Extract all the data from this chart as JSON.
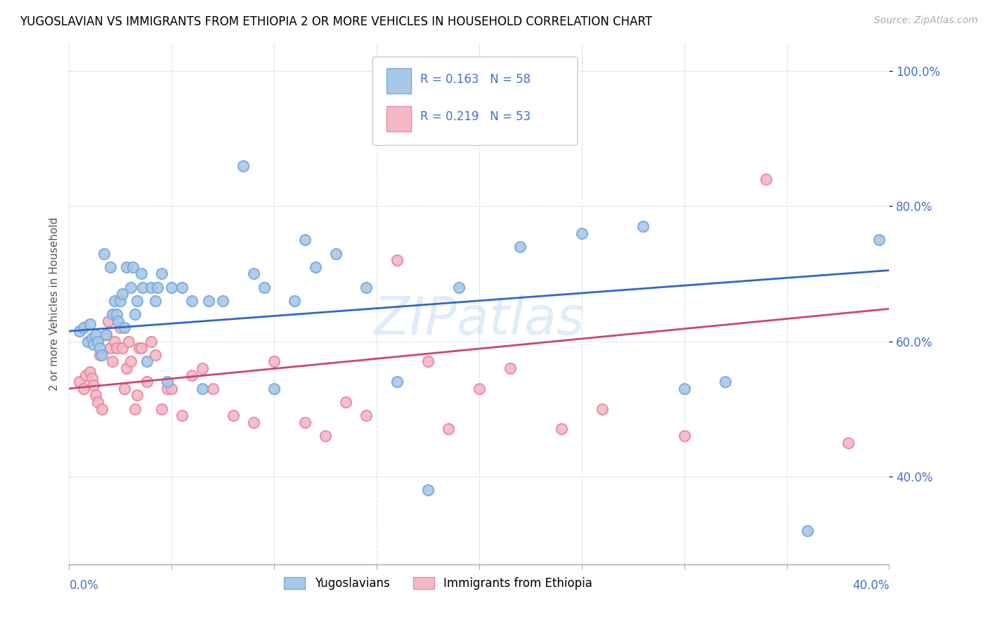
{
  "title": "YUGOSLAVIAN VS IMMIGRANTS FROM ETHIOPIA 2 OR MORE VEHICLES IN HOUSEHOLD CORRELATION CHART",
  "source": "Source: ZipAtlas.com",
  "ylabel": "2 or more Vehicles in Household",
  "xlim": [
    0.0,
    0.4
  ],
  "ylim": [
    0.27,
    1.04
  ],
  "yticks": [
    0.4,
    0.6,
    0.8,
    1.0
  ],
  "ytick_labels": [
    "40.0%",
    "60.0%",
    "80.0%",
    "100.0%"
  ],
  "blue_color": "#a8c8e8",
  "blue_edge_color": "#7aabda",
  "pink_color": "#f4b8c8",
  "pink_edge_color": "#e88aa0",
  "line_blue": "#3366cc",
  "line_pink": "#cc4477",
  "legend_R_blue": "R = 0.163",
  "legend_N_blue": "N = 58",
  "legend_R_pink": "R = 0.219",
  "legend_N_pink": "N = 53",
  "watermark": "ZIPatlas",
  "blue_x": [
    0.005,
    0.007,
    0.009,
    0.01,
    0.011,
    0.012,
    0.013,
    0.014,
    0.015,
    0.016,
    0.017,
    0.018,
    0.02,
    0.021,
    0.022,
    0.023,
    0.024,
    0.025,
    0.026,
    0.027,
    0.028,
    0.03,
    0.031,
    0.032,
    0.033,
    0.035,
    0.036,
    0.038,
    0.04,
    0.042,
    0.043,
    0.045,
    0.048,
    0.05,
    0.055,
    0.06,
    0.065,
    0.068,
    0.075,
    0.085,
    0.09,
    0.095,
    0.1,
    0.11,
    0.115,
    0.12,
    0.13,
    0.145,
    0.16,
    0.175,
    0.19,
    0.22,
    0.25,
    0.28,
    0.3,
    0.32,
    0.36,
    0.395
  ],
  "blue_y": [
    0.615,
    0.62,
    0.6,
    0.625,
    0.605,
    0.595,
    0.61,
    0.6,
    0.59,
    0.58,
    0.73,
    0.61,
    0.71,
    0.64,
    0.66,
    0.64,
    0.63,
    0.66,
    0.67,
    0.62,
    0.71,
    0.68,
    0.71,
    0.64,
    0.66,
    0.7,
    0.68,
    0.57,
    0.68,
    0.66,
    0.68,
    0.7,
    0.54,
    0.68,
    0.68,
    0.66,
    0.53,
    0.66,
    0.66,
    0.86,
    0.7,
    0.68,
    0.53,
    0.66,
    0.75,
    0.71,
    0.73,
    0.68,
    0.54,
    0.38,
    0.68,
    0.74,
    0.76,
    0.77,
    0.53,
    0.54,
    0.32,
    0.75
  ],
  "pink_x": [
    0.005,
    0.007,
    0.008,
    0.01,
    0.011,
    0.012,
    0.013,
    0.014,
    0.015,
    0.016,
    0.018,
    0.019,
    0.02,
    0.021,
    0.022,
    0.023,
    0.025,
    0.026,
    0.027,
    0.028,
    0.029,
    0.03,
    0.032,
    0.033,
    0.034,
    0.035,
    0.038,
    0.04,
    0.042,
    0.045,
    0.048,
    0.05,
    0.055,
    0.06,
    0.065,
    0.07,
    0.08,
    0.09,
    0.1,
    0.115,
    0.125,
    0.135,
    0.145,
    0.16,
    0.175,
    0.185,
    0.2,
    0.215,
    0.24,
    0.26,
    0.3,
    0.34,
    0.38
  ],
  "pink_y": [
    0.54,
    0.53,
    0.55,
    0.555,
    0.545,
    0.535,
    0.52,
    0.51,
    0.58,
    0.5,
    0.61,
    0.63,
    0.59,
    0.57,
    0.6,
    0.59,
    0.62,
    0.59,
    0.53,
    0.56,
    0.6,
    0.57,
    0.5,
    0.52,
    0.59,
    0.59,
    0.54,
    0.6,
    0.58,
    0.5,
    0.53,
    0.53,
    0.49,
    0.55,
    0.56,
    0.53,
    0.49,
    0.48,
    0.57,
    0.48,
    0.46,
    0.51,
    0.49,
    0.72,
    0.57,
    0.47,
    0.53,
    0.56,
    0.47,
    0.5,
    0.46,
    0.84,
    0.45
  ],
  "bg_color": "#ffffff",
  "grid_color": "#dddddd",
  "axis_label_color": "#4472c4",
  "title_color": "#000000"
}
